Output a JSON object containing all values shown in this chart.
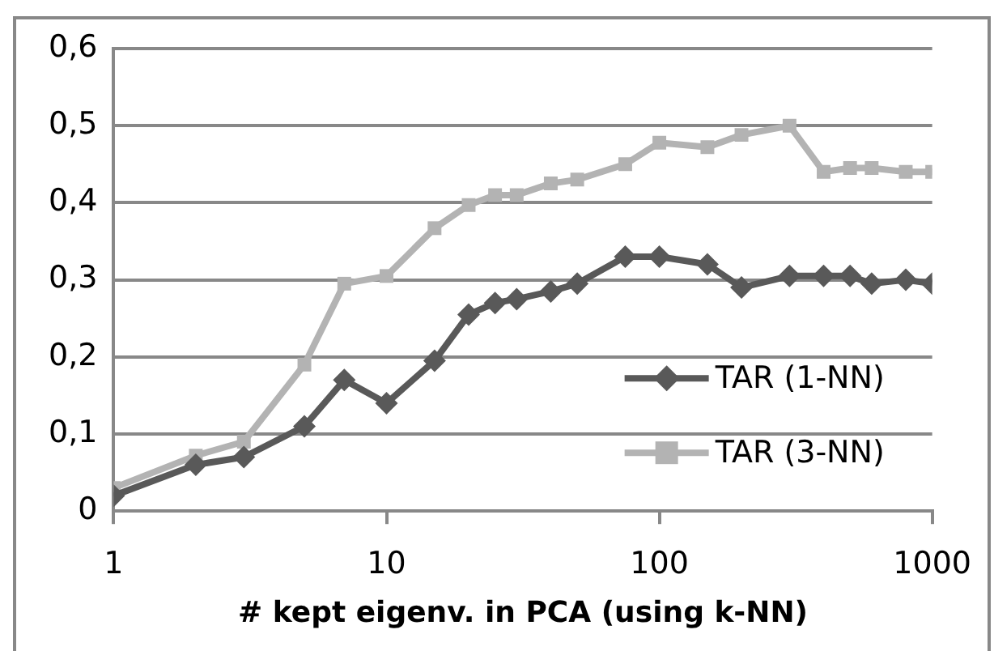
{
  "chart_data": {
    "type": "line",
    "xlabel": "# kept eigenv. in PCA (using k-NN)",
    "log": "x",
    "grid": "y",
    "legend": "bottom right",
    "line_style": "solid",
    "xlim": [
      1,
      1000
    ],
    "xticks": [
      1,
      10,
      100,
      1000
    ],
    "ylim": [
      0,
      0.6
    ],
    "yticks": [
      {
        "value": 0,
        "label": "0"
      },
      {
        "value": 0.1,
        "label": "0,1"
      },
      {
        "value": 0.2,
        "label": "0,2"
      },
      {
        "value": 0.3,
        "label": "0,3"
      },
      {
        "value": 0.4,
        "label": "0,4"
      },
      {
        "value": 0.5,
        "label": "0,5"
      },
      {
        "value": 0.6,
        "label": "0,6"
      }
    ],
    "x": [
      1,
      2,
      3,
      5,
      7,
      10,
      15,
      20,
      25,
      30,
      40,
      50,
      75,
      100,
      150,
      200,
      300,
      400,
      500,
      600,
      800,
      1000
    ],
    "series": [
      {
        "name": "TAR (1-NN)",
        "color": "#595959",
        "marker": "diamond",
        "values": [
          0.02,
          0.06,
          0.07,
          0.11,
          0.17,
          0.14,
          0.195,
          0.255,
          0.27,
          0.275,
          0.285,
          0.295,
          0.33,
          0.33,
          0.32,
          0.29,
          0.305,
          0.305,
          0.305,
          0.295,
          0.3,
          0.295
        ]
      },
      {
        "name": "TAR (3-NN)",
        "color": "#b3b3b3",
        "marker": "square",
        "values": [
          0.03,
          0.072,
          0.09,
          0.19,
          0.295,
          0.305,
          0.367,
          0.397,
          0.41,
          0.41,
          0.425,
          0.43,
          0.45,
          0.478,
          0.472,
          0.488,
          0.5,
          0.44,
          0.445,
          0.445,
          0.44,
          0.44
        ]
      }
    ]
  }
}
